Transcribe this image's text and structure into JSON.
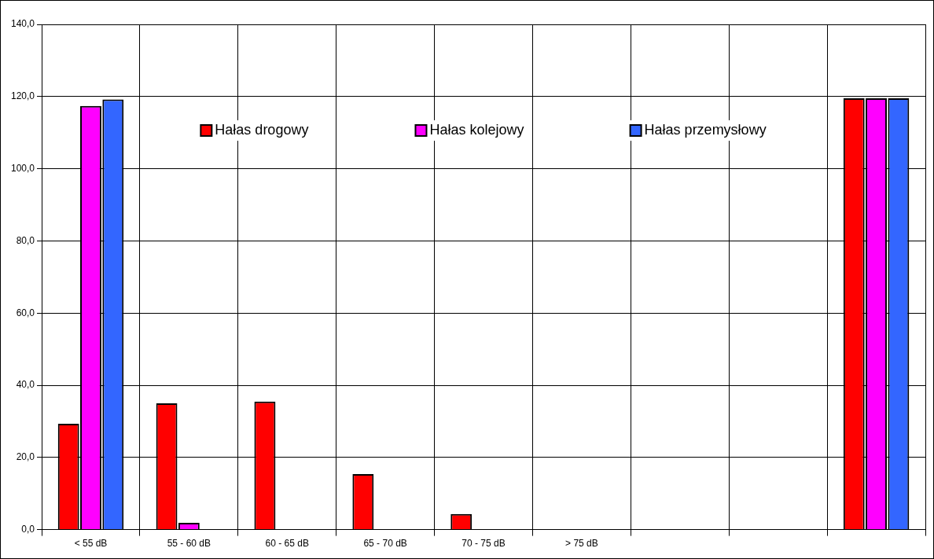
{
  "chart_data": {
    "type": "bar",
    "categories": [
      "< 55 dB",
      "55 - 60 dB",
      "60 - 65 dB",
      "65 - 70 dB",
      "70 - 75 dB",
      "> 75 dB",
      null,
      null,
      null
    ],
    "series": [
      {
        "name": "Hałas drogowy",
        "color": "#ff0000",
        "values": [
          29.3,
          35.0,
          35.5,
          15.4,
          4.3,
          null,
          null,
          null,
          119.5
        ]
      },
      {
        "name": "Hałas kolejowy",
        "color": "#ff00ff",
        "values": [
          117.4,
          1.9,
          null,
          null,
          null,
          null,
          null,
          null,
          119.5
        ]
      },
      {
        "name": "Hałas przemysłowy",
        "color": "#3366ff",
        "values": [
          119.2,
          null,
          null,
          null,
          null,
          null,
          null,
          null,
          119.5
        ]
      }
    ],
    "ylim": [
      0,
      140
    ],
    "yticks": [
      {
        "value": 0,
        "label": "0,0"
      },
      {
        "value": 20,
        "label": "20,0"
      },
      {
        "value": 40,
        "label": "40,0"
      },
      {
        "value": 60,
        "label": "60,0"
      },
      {
        "value": 80,
        "label": "80,0"
      },
      {
        "value": 100,
        "label": "100,0"
      },
      {
        "value": 120,
        "label": "120,0"
      },
      {
        "value": 140,
        "label": "140,0"
      }
    ],
    "grid": true,
    "legend": "top"
  }
}
